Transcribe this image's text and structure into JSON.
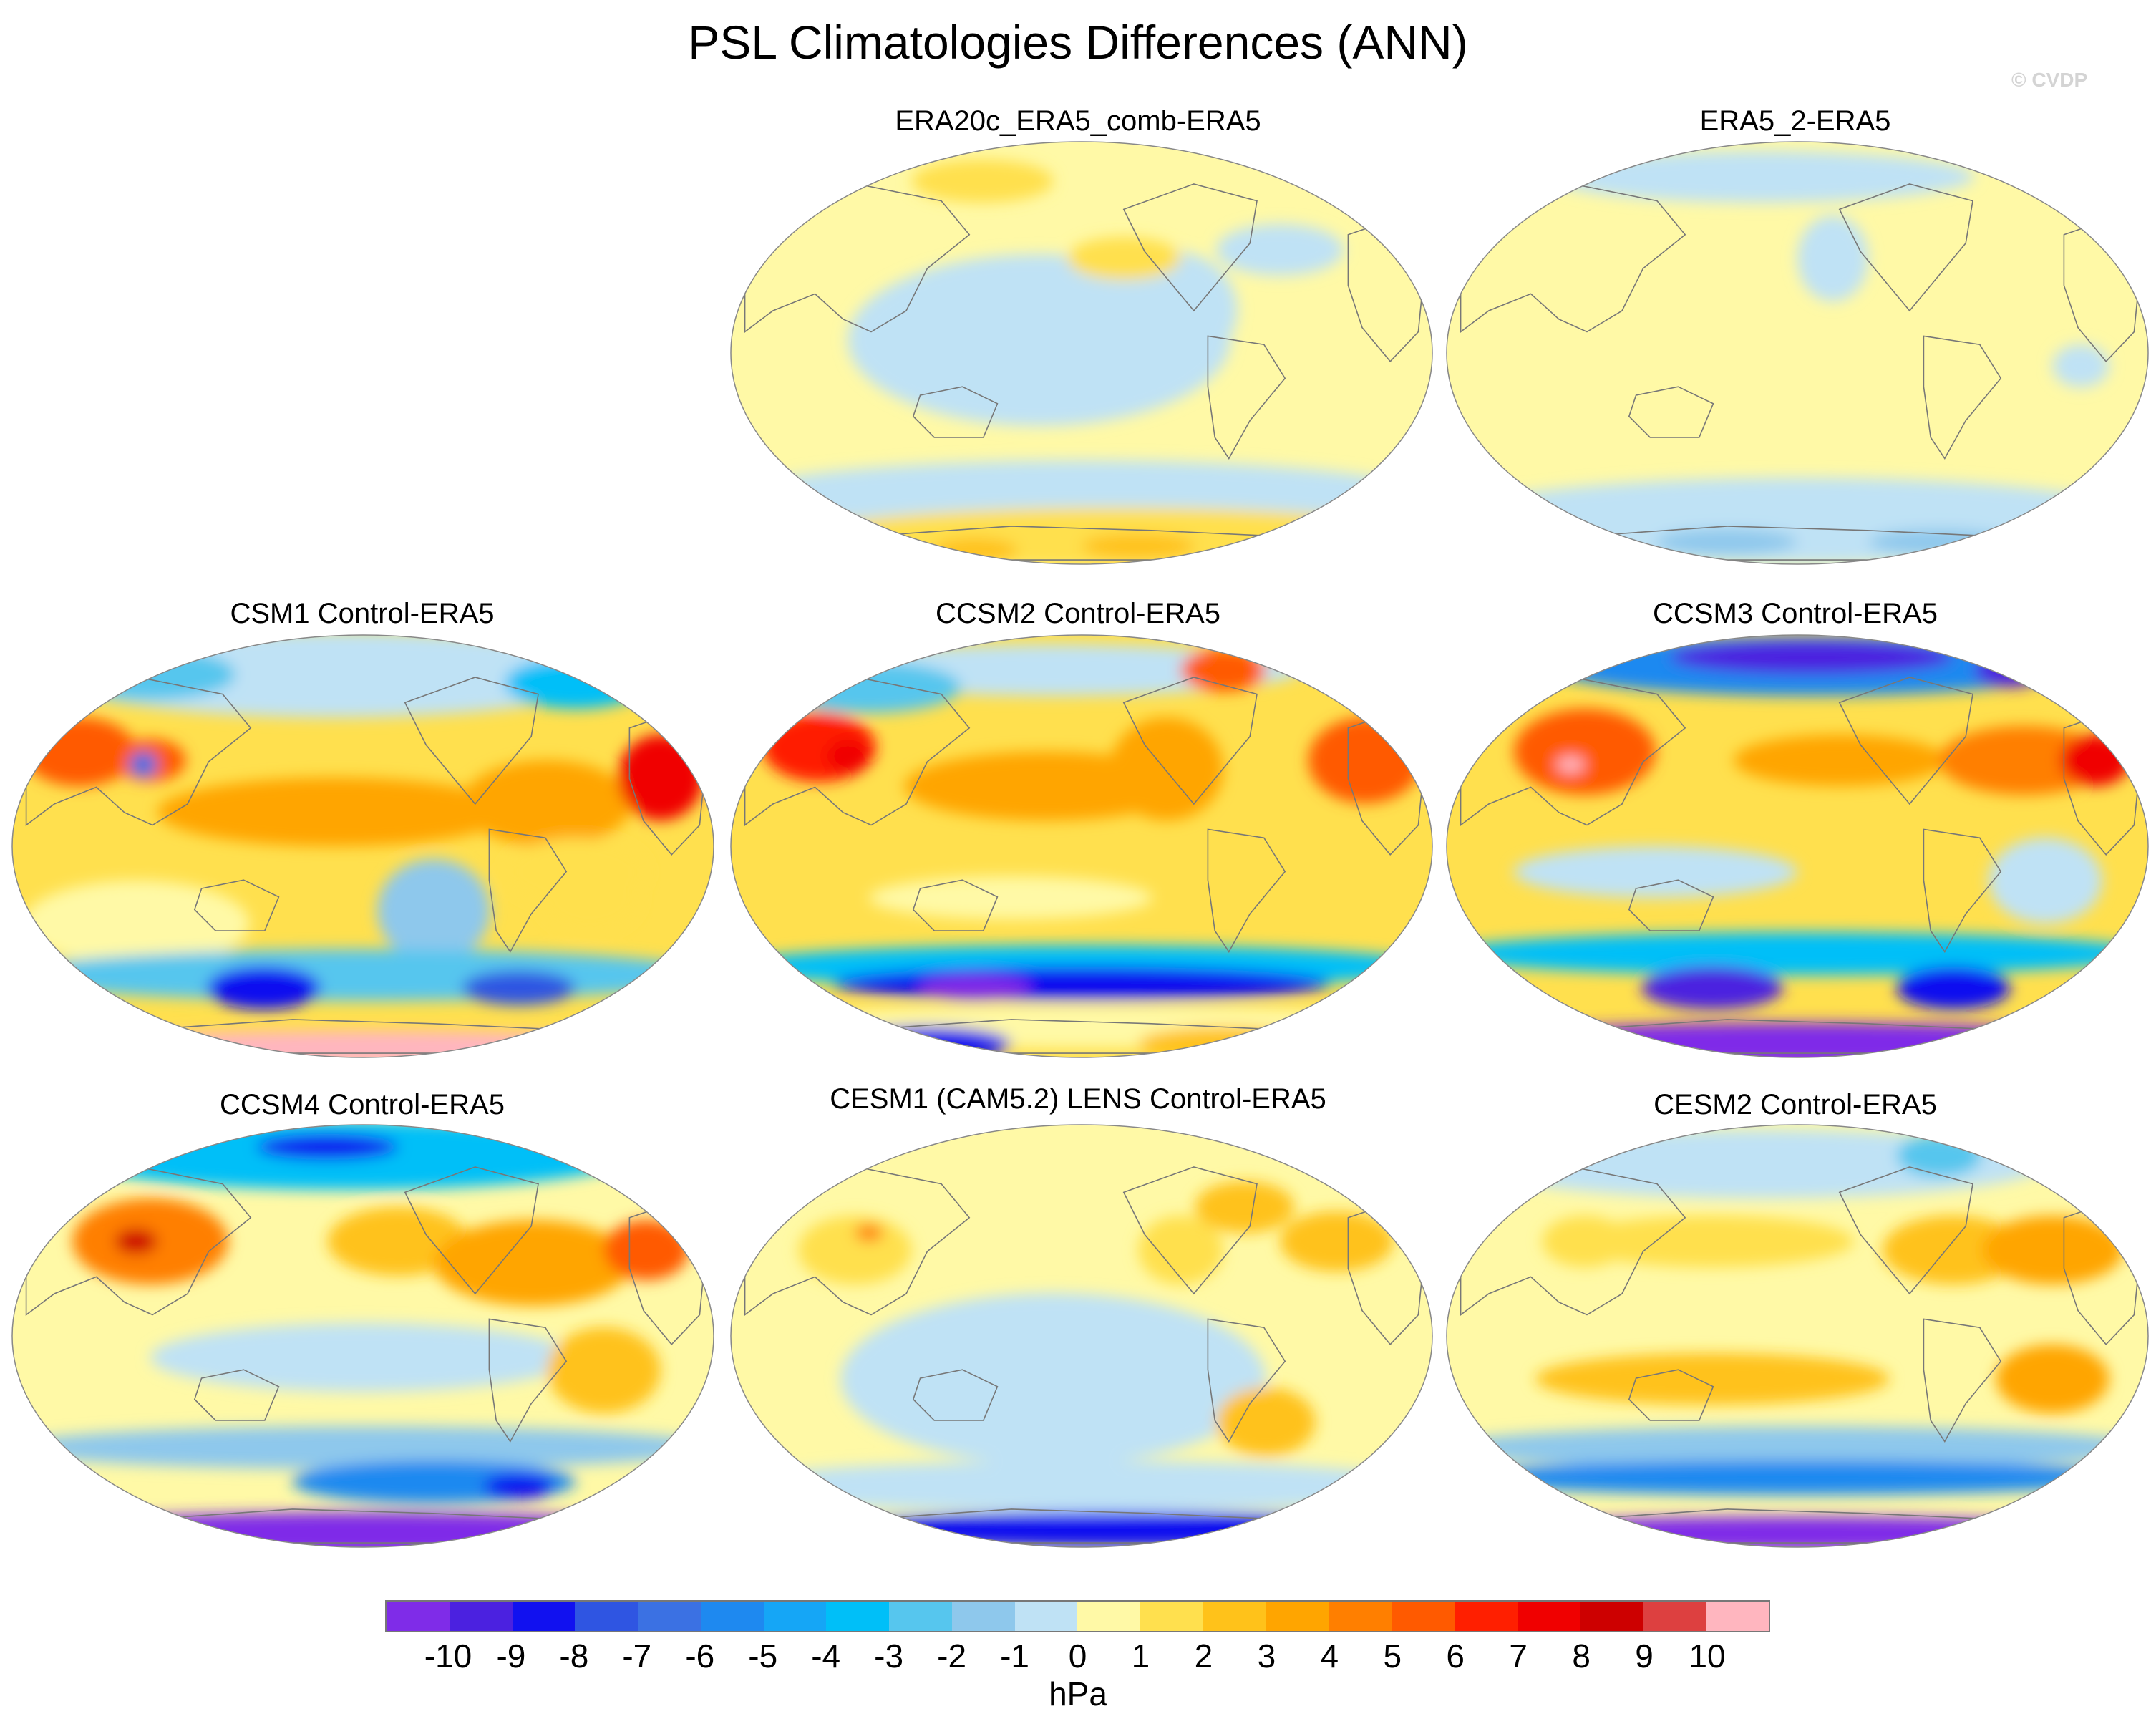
{
  "figure": {
    "title": "PSL Climatologies Differences (ANN)",
    "credit": "© CVDP"
  },
  "colors": {
    "levels": [
      "#7f2ce8",
      "#4b21e0",
      "#1111f0",
      "#2f55e2",
      "#3b71e3",
      "#1e89f0",
      "#15a6f6",
      "#00bff8",
      "#56c6ee",
      "#8ec8ec",
      "#bfe2f5",
      "#fff9a6",
      "#ffe04e",
      "#ffc21a",
      "#ffa500",
      "#ff7f00",
      "#ff5a00",
      "#ff1f00",
      "#f00000",
      "#cd0000",
      "#dd4040",
      "#ffb6bf"
    ],
    "coast": "#777777"
  },
  "colorbar": {
    "ticks": [
      "-10",
      "-9",
      "-8",
      "-7",
      "-6",
      "-5",
      "-4",
      "-3",
      "-2",
      "-1",
      "0",
      "1",
      "2",
      "3",
      "4",
      "5",
      "6",
      "7",
      "8",
      "9",
      "10"
    ],
    "unit": "hPa"
  },
  "panels": [
    {
      "title": "ERA20c_ERA5_comb-ERA5",
      "pattern": "era20c"
    },
    {
      "title": "ERA5_2-ERA5",
      "pattern": "era5_2"
    },
    {
      "title": "CSM1 Control-ERA5",
      "pattern": "csm1"
    },
    {
      "title": "CCSM2 Control-ERA5",
      "pattern": "ccsm2"
    },
    {
      "title": "CCSM3 Control-ERA5",
      "pattern": "ccsm3"
    },
    {
      "title": "CCSM4 Control-ERA5",
      "pattern": "ccsm4"
    },
    {
      "title": "CESM1 (CAM5.2) LENS Control-ERA5",
      "pattern": "cesm1"
    },
    {
      "title": "CESM2 Control-ERA5",
      "pattern": "cesm2"
    }
  ]
}
